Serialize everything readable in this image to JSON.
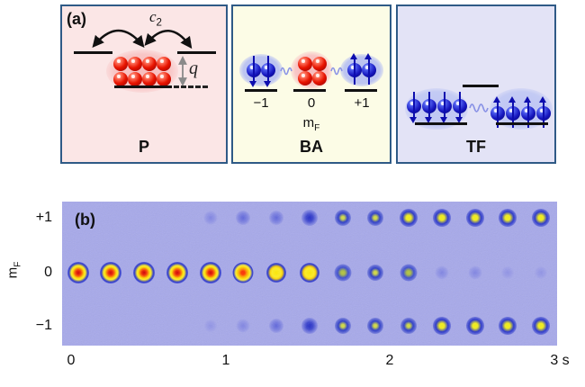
{
  "figure": {
    "panel_a": {
      "label": "(a)",
      "border_color": "#2f5a86",
      "sub_panels": [
        {
          "name": "P",
          "bg": "#fbe6e6",
          "coupling": {
            "base": "c",
            "sub": "2"
          },
          "q_label": "q"
        },
        {
          "name": "BA",
          "bg": "#fcfce6",
          "levels": [
            "−1",
            "0",
            "+1"
          ],
          "axis": {
            "base": "m",
            "sub": "F"
          }
        },
        {
          "name": "TF",
          "bg": "#e3e3f6"
        }
      ],
      "clouds": [
        {
          "id": "P-cloud",
          "color": "red",
          "spin": "none",
          "count": 8
        },
        {
          "id": "BA-left",
          "color": "blue",
          "spin": "down",
          "count": 2
        },
        {
          "id": "BA-center",
          "color": "red",
          "spin": "none",
          "count": 4
        },
        {
          "id": "BA-right",
          "color": "blue",
          "spin": "up",
          "count": 2
        },
        {
          "id": "TF-left",
          "color": "blue",
          "spin": "down",
          "count": 4
        },
        {
          "id": "TF-right",
          "color": "blue",
          "spin": "up",
          "count": 4
        }
      ]
    },
    "panel_b": {
      "label": "(b)",
      "bg": "#a7a9ea",
      "y_axis": {
        "title": {
          "base": "m",
          "sub": "F"
        },
        "ticks": [
          "+1",
          "0",
          "−1"
        ]
      },
      "x_axis": {
        "ticks": [
          "0",
          "1",
          "2",
          "3 s"
        ],
        "unit": "s",
        "range_s": [
          0,
          3
        ]
      }
    }
  },
  "chart_data": {
    "type": "heatmap",
    "title": "",
    "description": "Time series of Stern-Gerlach absorption images: atom clouds in Zeeman components mF = +1, 0, -1 versus hold time (15 frames, 0 to 3 s)",
    "rows": [
      "+1",
      "0",
      "-1"
    ],
    "frame_times_s": [
      0.05,
      0.26,
      0.46,
      0.67,
      0.88,
      1.09,
      1.29,
      1.5,
      1.71,
      1.91,
      2.12,
      2.33,
      2.53,
      2.74,
      2.95
    ],
    "xlabel_ticks": [
      "0",
      "1",
      "2",
      "3 s"
    ],
    "ylabel": "mF",
    "spot_code_legend": {
      "R": "bright spot, red-hot center",
      "O": "bright spot, orange center",
      "Y": "bright spot, yellow center",
      "GY": "medium spot, dim yellow-green center",
      "BY1": "medium blue spot with small yellow core",
      "BY2": "blue ring with bright yellow core",
      "B2": "medium blue cloud",
      "B1": "faint blue cloud",
      "B0": "very faint cloud",
      "B0f": "barely visible cloud",
      "N": "no atoms visible"
    },
    "spots": {
      "+1": [
        "N",
        "N",
        "N",
        "N",
        "B0",
        "B1",
        "B1",
        "B2",
        "BY1",
        "BY1",
        "BY2",
        "BY2",
        "BY2",
        "BY2",
        "BY2"
      ],
      "0": [
        "R",
        "R",
        "R",
        "R",
        "R",
        "O",
        "Y",
        "Y",
        "GY",
        "BY1",
        "GY",
        "B0",
        "B0",
        "B0f",
        "B0f"
      ],
      "-1": [
        "N",
        "N",
        "N",
        "N",
        "B0f",
        "B0",
        "B1",
        "B2",
        "BY1",
        "BY1",
        "BY1",
        "BY2",
        "BY2",
        "BY2",
        "BY2"
      ]
    },
    "relative_intensity": {
      "+1": [
        0,
        0,
        0,
        0,
        0.06,
        0.12,
        0.18,
        0.3,
        0.45,
        0.55,
        0.65,
        0.7,
        0.72,
        0.75,
        0.75
      ],
      "0": [
        1,
        1,
        1,
        0.98,
        0.95,
        0.9,
        0.85,
        0.8,
        0.5,
        0.45,
        0.35,
        0.12,
        0.1,
        0.06,
        0.04
      ],
      "-1": [
        0,
        0,
        0,
        0,
        0.04,
        0.1,
        0.16,
        0.3,
        0.45,
        0.5,
        0.6,
        0.7,
        0.72,
        0.75,
        0.75
      ]
    }
  }
}
